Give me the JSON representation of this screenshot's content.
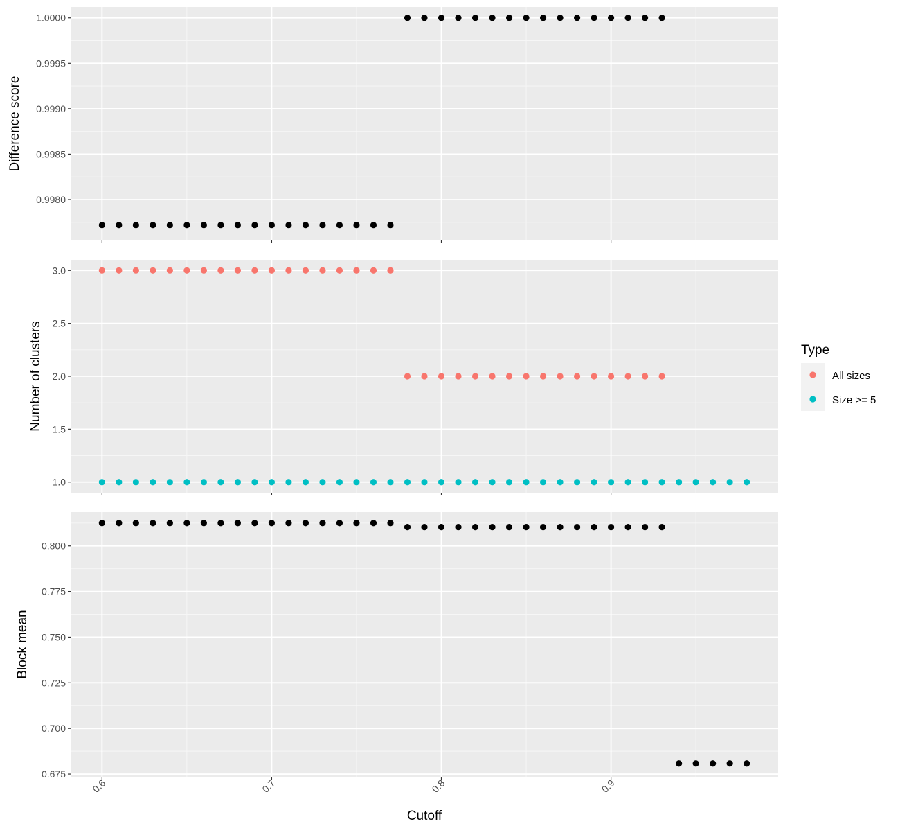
{
  "chart_data": {
    "type": "scatter",
    "xlabel": "Cutoff",
    "x_ticks": [
      "0.6",
      "0.7",
      "0.8",
      "0.9"
    ],
    "x_tick_values": [
      0.6,
      0.7,
      0.8,
      0.9
    ],
    "xlim": [
      0.5815,
      0.9985
    ],
    "grid": true,
    "legend": {
      "title": "Type",
      "placement": "right",
      "entries": [
        {
          "label": "All sizes",
          "color": "#F8766D"
        },
        {
          "label": "Size >= 5",
          "color": "#00BFC4"
        }
      ]
    },
    "panels": [
      {
        "ylabel": "Difference score",
        "ylim": [
          0.99755,
          1.00012
        ],
        "y_ticks": [
          "0.9980",
          "0.9985",
          "0.9990",
          "0.9995",
          "1.0000"
        ],
        "y_tick_values": [
          0.998,
          0.9985,
          0.999,
          0.9995,
          1.0
        ],
        "y_minor": [
          0.99775,
          0.99825,
          0.99875,
          0.99925,
          0.99975
        ],
        "series": [
          {
            "color": "#000000",
            "x": [
              0.6,
              0.61,
              0.62,
              0.63,
              0.64,
              0.65,
              0.66,
              0.67,
              0.68,
              0.69,
              0.7,
              0.71,
              0.72,
              0.73,
              0.74,
              0.75,
              0.76,
              0.77,
              0.78,
              0.79,
              0.8,
              0.81,
              0.82,
              0.83,
              0.84,
              0.85,
              0.86,
              0.87,
              0.88,
              0.89,
              0.9,
              0.91,
              0.92,
              0.93
            ],
            "y": [
              0.99772,
              0.99772,
              0.99772,
              0.99772,
              0.99772,
              0.99772,
              0.99772,
              0.99772,
              0.99772,
              0.99772,
              0.99772,
              0.99772,
              0.99772,
              0.99772,
              0.99772,
              0.99772,
              0.99772,
              0.99772,
              1.0,
              1.0,
              1.0,
              1.0,
              1.0,
              1.0,
              1.0,
              1.0,
              1.0,
              1.0,
              1.0,
              1.0,
              1.0,
              1.0,
              1.0,
              1.0
            ]
          }
        ]
      },
      {
        "ylabel": "Number of clusters",
        "ylim": [
          0.9,
          3.1
        ],
        "y_ticks": [
          "1.0",
          "1.5",
          "2.0",
          "2.5",
          "3.0"
        ],
        "y_tick_values": [
          1.0,
          1.5,
          2.0,
          2.5,
          3.0
        ],
        "y_minor": [
          1.25,
          1.75,
          2.25,
          2.75
        ],
        "series": [
          {
            "name": "All sizes",
            "color": "#F8766D",
            "x": [
              0.6,
              0.61,
              0.62,
              0.63,
              0.64,
              0.65,
              0.66,
              0.67,
              0.68,
              0.69,
              0.7,
              0.71,
              0.72,
              0.73,
              0.74,
              0.75,
              0.76,
              0.77,
              0.78,
              0.79,
              0.8,
              0.81,
              0.82,
              0.83,
              0.84,
              0.85,
              0.86,
              0.87,
              0.88,
              0.89,
              0.9,
              0.91,
              0.92,
              0.93
            ],
            "y": [
              3,
              3,
              3,
              3,
              3,
              3,
              3,
              3,
              3,
              3,
              3,
              3,
              3,
              3,
              3,
              3,
              3,
              3,
              2,
              2,
              2,
              2,
              2,
              2,
              2,
              2,
              2,
              2,
              2,
              2,
              2,
              2,
              2,
              2
            ]
          },
          {
            "name": "Size >= 5",
            "color": "#00BFC4",
            "x": [
              0.6,
              0.61,
              0.62,
              0.63,
              0.64,
              0.65,
              0.66,
              0.67,
              0.68,
              0.69,
              0.7,
              0.71,
              0.72,
              0.73,
              0.74,
              0.75,
              0.76,
              0.77,
              0.78,
              0.79,
              0.8,
              0.81,
              0.82,
              0.83,
              0.84,
              0.85,
              0.86,
              0.87,
              0.88,
              0.89,
              0.9,
              0.91,
              0.92,
              0.93,
              0.94,
              0.95,
              0.96,
              0.97,
              0.98
            ],
            "y": [
              1,
              1,
              1,
              1,
              1,
              1,
              1,
              1,
              1,
              1,
              1,
              1,
              1,
              1,
              1,
              1,
              1,
              1,
              1,
              1,
              1,
              1,
              1,
              1,
              1,
              1,
              1,
              1,
              1,
              1,
              1,
              1,
              1,
              1,
              1,
              1,
              1,
              1,
              1
            ]
          }
        ]
      },
      {
        "ylabel": "Block mean",
        "ylim": [
          0.6735,
          0.8185
        ],
        "y_ticks": [
          "0.675",
          "0.700",
          "0.725",
          "0.750",
          "0.775",
          "0.800"
        ],
        "y_tick_values": [
          0.675,
          0.7,
          0.725,
          0.75,
          0.775,
          0.8
        ],
        "y_minor": [
          0.6875,
          0.7125,
          0.7375,
          0.7625,
          0.7875,
          0.8125
        ],
        "series": [
          {
            "color": "#000000",
            "x": [
              0.6,
              0.61,
              0.62,
              0.63,
              0.64,
              0.65,
              0.66,
              0.67,
              0.68,
              0.69,
              0.7,
              0.71,
              0.72,
              0.73,
              0.74,
              0.75,
              0.76,
              0.77,
              0.78,
              0.79,
              0.8,
              0.81,
              0.82,
              0.83,
              0.84,
              0.85,
              0.86,
              0.87,
              0.88,
              0.89,
              0.9,
              0.91,
              0.92,
              0.93,
              0.94,
              0.95,
              0.96,
              0.97,
              0.98
            ],
            "y": [
              0.8125,
              0.8125,
              0.8125,
              0.8125,
              0.8125,
              0.8125,
              0.8125,
              0.8125,
              0.8125,
              0.8125,
              0.8125,
              0.8125,
              0.8125,
              0.8125,
              0.8125,
              0.8125,
              0.8125,
              0.8125,
              0.8103,
              0.8103,
              0.8103,
              0.8103,
              0.8103,
              0.8103,
              0.8103,
              0.8103,
              0.8103,
              0.8103,
              0.8103,
              0.8103,
              0.8103,
              0.8103,
              0.8103,
              0.8103,
              0.6808,
              0.6808,
              0.6808,
              0.6808,
              0.6808
            ]
          }
        ]
      }
    ]
  }
}
